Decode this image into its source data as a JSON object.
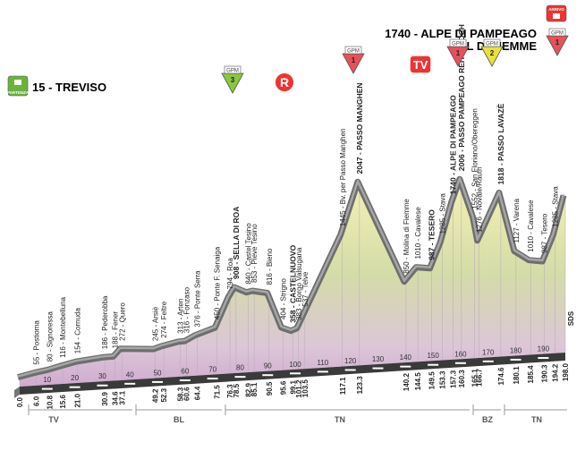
{
  "chart_data": {
    "type": "area",
    "subtitle": "VAL DI FIEMME",
    "x": [
      0,
      6,
      10.8,
      15.6,
      21,
      30.9,
      34.6,
      37.1,
      49.2,
      52.3,
      58.3,
      60.6,
      64.4,
      71.5,
      76.3,
      78.5,
      82.9,
      85.1,
      90.5,
      95.6,
      99.1,
      101.2,
      103.5,
      117.1,
      123.3,
      140.2,
      144.5,
      149.5,
      153.3,
      157.3,
      160.3,
      165.1,
      166.7,
      174.6,
      180.1,
      185.4,
      190.3,
      194.2,
      198
    ],
    "x_labels": [
      "0.0",
      "6.0",
      "10.8",
      "15.6",
      "21.0",
      "30.9",
      "34.6",
      "37.1",
      "49.2",
      "52.3",
      "58.3",
      "60.6",
      "64.4",
      "71.5",
      "76.3",
      "78.5",
      "82.9",
      "85.1",
      "90.5",
      "95.6",
      "99.1",
      "101.2",
      "103.5",
      "117.1",
      "123.3",
      "140.2",
      "144.5",
      "149.5",
      "153.3",
      "157.3",
      "160.3",
      "165.1",
      "166.7",
      "174.6",
      "180.1",
      "185.4",
      "190.3",
      "194.2",
      "198.0"
    ],
    "values": [
      15,
      55,
      80,
      116,
      154,
      186,
      188,
      272,
      245,
      274,
      313,
      316,
      376,
      450,
      794,
      908,
      840,
      853,
      816,
      404,
      358,
      383,
      537,
      1445,
      2047,
      850,
      1010,
      987,
      1285,
      1740,
      2006,
      1552,
      1276,
      1818,
      1127,
      1010,
      987,
      1285,
      1740
    ],
    "value_labels": [
      "15 - TREVISO",
      "55 - Postioma",
      "80 - Signoressa",
      "116 - Montebelluna",
      "154 - Cornuda",
      "186 - Pederobba",
      "188 - Fener",
      "272 - Quero",
      "245 - Arsiè",
      "274 - Feltre",
      "313 - Arten",
      "316 - Fonzaso",
      "376 - Ponte Serra",
      "450 - Ponte F. Senaiga",
      "794 - Roa",
      "908 - SELLA DI ROA",
      "840 - Castel Tesino",
      "853 - Pieve Tesino",
      "816 - Bieno",
      "404 - Strigno",
      "358 - CASTELNUOVO",
      "383 - Borgo Valsugana",
      "537 - Telve",
      "1445 - Bv. per Passo Manghen",
      "2047 - PASSO MANGHEN",
      "850 - Molina di Fiemme",
      "1010 - Cavalese",
      "987 - TESERO",
      "1285 - Stava",
      "1740 - ALPE DI PAMPEAGO",
      "2006 - PASSO PAMPEAGO REITERJOCH",
      "1552 - San Floriano/Obereggen",
      "1276 - Novale/Rauth",
      "1818 - PASSO LAVAZÈ",
      "1127 - Varena",
      "1010 - Cavalese",
      "987 - Tesero",
      "1285 - Stava",
      "1740 - ALPE DI PAMPEAGO"
    ],
    "xlim": [
      0,
      198
    ],
    "xticks": [
      10,
      20,
      30,
      40,
      50,
      60,
      70,
      80,
      90,
      100,
      110,
      120,
      130,
      140,
      150,
      160,
      170,
      180,
      190
    ],
    "regions": [
      "TV",
      "BL",
      "TN",
      "BZ",
      "TN"
    ],
    "markers": [
      {
        "label": "PARTENZA"
      },
      {
        "label": "GPM",
        "text": "3"
      },
      {
        "label": "R"
      },
      {
        "label": "GPM",
        "text": "1"
      },
      {
        "label": "TV"
      },
      {
        "label": "GPM",
        "text": "1"
      },
      {
        "label": "GPM",
        "text": "2"
      },
      {
        "label": "GPM",
        "text": "1"
      },
      {
        "label": "ARRIVO"
      }
    ],
    "credit": "SDS"
  }
}
